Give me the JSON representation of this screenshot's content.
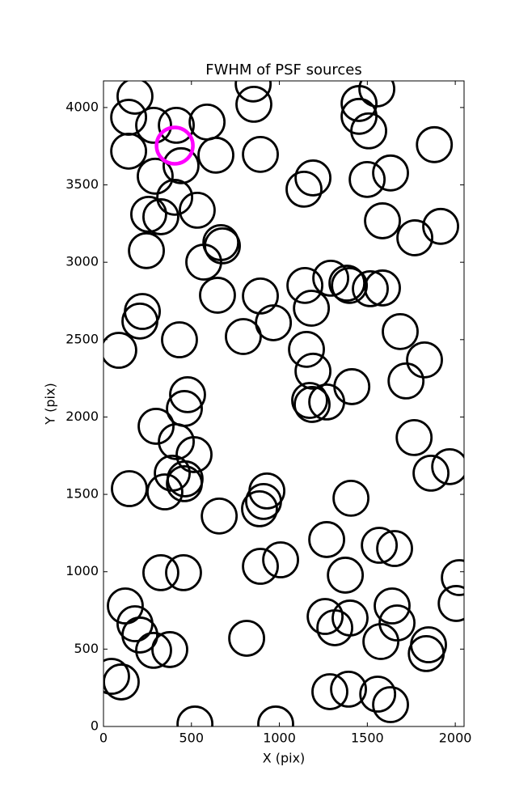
{
  "chart_data": {
    "type": "scatter",
    "title": "FWHM of PSF sources",
    "x_label": "X (pix)",
    "y_label": "Y (pix)",
    "xlim": [
      0,
      2050
    ],
    "ylim": [
      0,
      4172
    ],
    "xticks": [
      0,
      500,
      1000,
      1500,
      2000
    ],
    "yticks": [
      0,
      500,
      1000,
      1500,
      2000,
      2500,
      3000,
      3500,
      4000
    ],
    "series": [
      {
        "color": "#000000",
        "x": [
          179,
          143,
          285,
          414,
          589,
          851,
          855,
          892,
          1554,
          1453,
          1453,
          1508,
          1881,
          143,
          441,
          294,
          639,
          405,
          533,
          326,
          257,
          244,
          570,
          667,
          676,
          648,
          1140,
          1191,
          1499,
          1632,
          1586,
          1770,
          1917,
          892,
          966,
          1145,
          1182,
          1292,
          1384,
          1398,
          1517,
          1586,
          221,
          207,
          87,
          432,
          795,
          1687,
          1154,
          1191,
          1412,
          1825,
          1720,
          478,
          460,
          1172,
          1186,
          1269,
          299,
          414,
          515,
          391,
          464,
          460,
          349,
          147,
          658,
          929,
          910,
          887,
          1407,
          1766,
          1862,
          1968,
          1269,
          1568,
          1655,
          1007,
          892,
          326,
          455,
          124,
          179,
          207,
          285,
          377,
          814,
          1260,
          1315,
          1402,
          1375,
          1641,
          1669,
          1577,
          1848,
          1835,
          2023,
          2005,
          46,
          101,
          520,
          979,
          1287,
          1393,
          1559,
          1632
        ],
        "y": [
          4073,
          3937,
          3885,
          3885,
          3906,
          4152,
          4021,
          3697,
          4120,
          4026,
          3943,
          3849,
          3760,
          3718,
          3624,
          3556,
          3692,
          3420,
          3336,
          3294,
          3310,
          3075,
          3001,
          3127,
          3106,
          2787,
          3472,
          3545,
          3535,
          3577,
          3268,
          3158,
          3232,
          2782,
          2609,
          2850,
          2703,
          2897,
          2865,
          2850,
          2829,
          2834,
          2682,
          2620,
          2431,
          2499,
          2520,
          2552,
          2437,
          2296,
          2196,
          2369,
          2233,
          2144,
          2055,
          2107,
          2081,
          2097,
          1940,
          1841,
          1757,
          1637,
          1600,
          1569,
          1516,
          1537,
          1360,
          1522,
          1454,
          1407,
          1475,
          1867,
          1637,
          1679,
          1208,
          1171,
          1150,
          1077,
          1035,
          994,
          994,
          779,
          664,
          591,
          492,
          497,
          570,
          711,
          638,
          701,
          978,
          779,
          669,
          549,
          528,
          471,
          962,
          795,
          324,
          288,
          16,
          16,
          225,
          241,
          209,
          141
        ]
      },
      {
        "color": "#ff00ff",
        "x": [
          405
        ],
        "y": [
          3754
        ]
      }
    ]
  }
}
